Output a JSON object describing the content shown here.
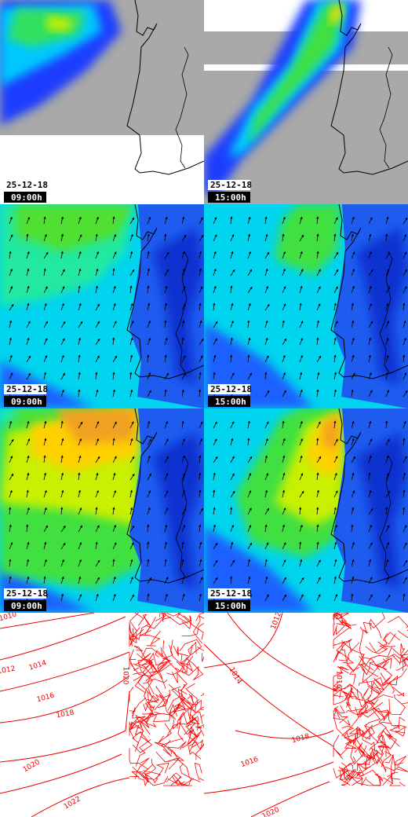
{
  "panels": [
    {
      "date": "25-12-18",
      "time": "09:00h"
    },
    {
      "date": "25-12-18",
      "time": "15:00h"
    },
    {
      "date": "25-12-18",
      "time": "09:00h"
    },
    {
      "date": "25-12-18",
      "time": "15:00h"
    },
    {
      "date": "25-12-18",
      "time": "09:00h"
    },
    {
      "date": "25-12-18",
      "time": "15:00h"
    }
  ],
  "isobars": {
    "left": [
      "1010",
      "1012",
      "1014",
      "1016",
      "1018",
      "1020",
      "1020",
      "1022"
    ],
    "right": [
      "1012",
      "1014",
      "1016",
      "1016",
      "1018",
      "1020"
    ]
  }
}
